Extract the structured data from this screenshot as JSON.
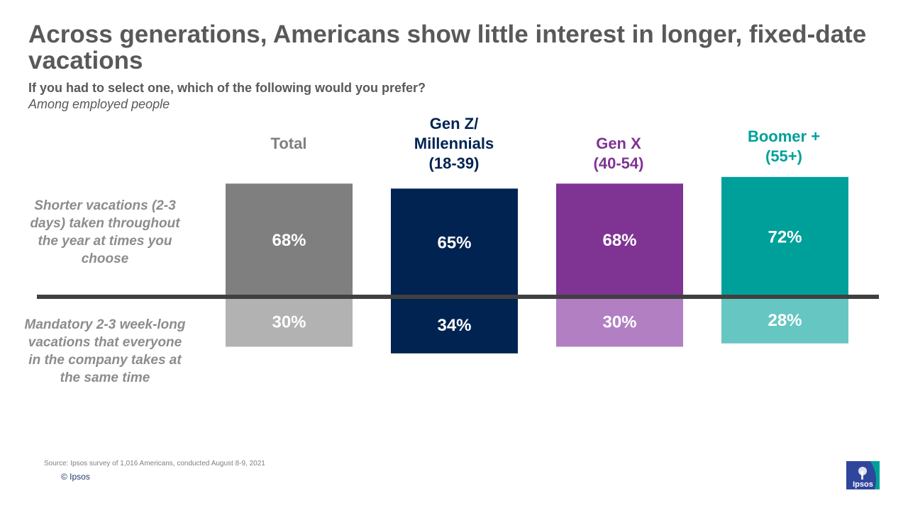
{
  "title": "Across generations, Americans show little interest in longer, fixed-date vacations",
  "subtitle": "If you had to select one, which of the following would you prefer?",
  "note": "Among employed people",
  "row_labels": {
    "top": "Shorter vacations (2-3 days) taken throughout the year at times you choose",
    "bottom": "Mandatory 2-3 week-long vacations that everyone in the company takes at the same time"
  },
  "columns": [
    {
      "label_lines": [
        "Total"
      ],
      "color": "#7f7f7f"
    },
    {
      "label_lines": [
        "Gen Z/",
        "Millennials",
        "(18-39)"
      ],
      "color": "#002352"
    },
    {
      "label_lines": [
        "Gen X",
        "(40-54)"
      ],
      "color": "#7f3494"
    },
    {
      "label_lines": [
        "Boomer +",
        "(55+)"
      ],
      "color": "#00a09a"
    }
  ],
  "chart_data": {
    "type": "bar",
    "orientation": "diverging-vertical",
    "title": "Across generations, Americans show little interest in longer, fixed-date vacations",
    "categories": [
      "Total",
      "Gen Z/ Millennials (18-39)",
      "Gen X (40-54)",
      "Boomer + (55+)"
    ],
    "series": [
      {
        "name": "Shorter vacations (2-3 days) taken throughout the year at times you choose",
        "values": [
          68,
          65,
          68,
          72
        ],
        "labels": [
          "68%",
          "65%",
          "68%",
          "72%"
        ],
        "colors": [
          "#7f7f7f",
          "#002352",
          "#7f3494",
          "#00a09a"
        ]
      },
      {
        "name": "Mandatory 2-3 week-long vacations that everyone in the company takes at the same time",
        "values": [
          30,
          34,
          30,
          28
        ],
        "labels": [
          "30%",
          "34%",
          "30%",
          "28%"
        ],
        "colors": [
          "#b2b2b2",
          "#002352",
          "#b27fc3",
          "#66c6c2"
        ]
      }
    ],
    "unit": "%",
    "xlabel": "",
    "ylabel": ""
  },
  "source": "Source: Ipsos survey of 1,016 Americans, conducted August 8-9, 2021",
  "copyright": "© Ipsos",
  "logo_text": "Ipsos",
  "logo_color": "#2f469c",
  "logo_accent": "#00a09a"
}
